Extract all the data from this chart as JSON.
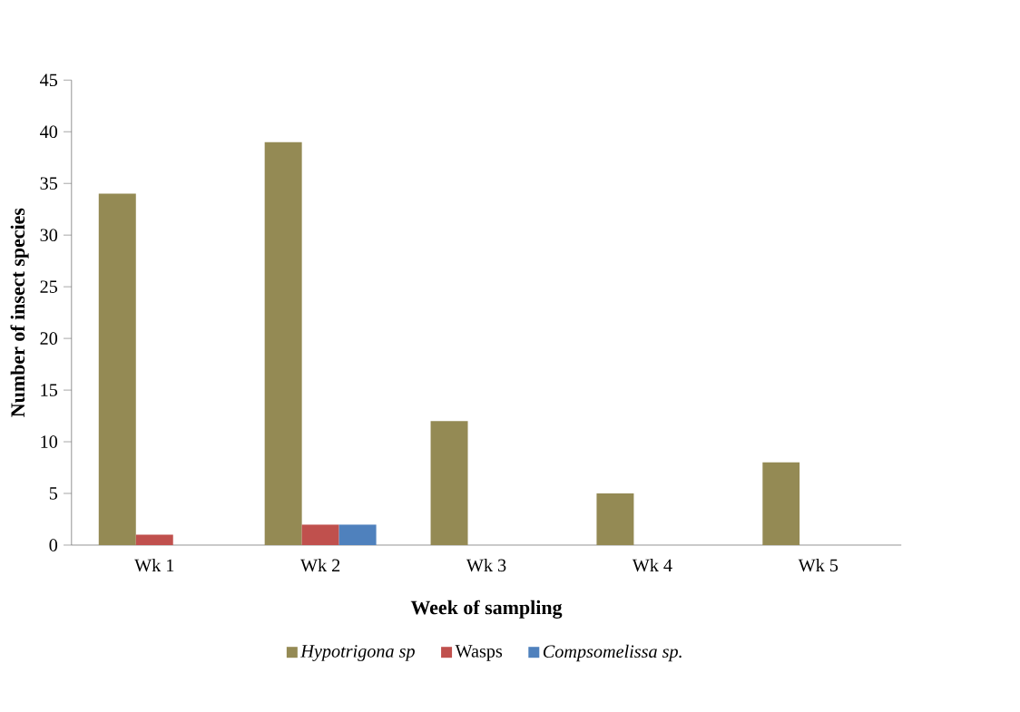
{
  "chart_data": {
    "type": "bar",
    "xlabel": "Week of sampling",
    "ylabel": "Number of insect species",
    "categories": [
      "Wk 1",
      "Wk 2",
      "Wk 3",
      "Wk 4",
      "Wk 5"
    ],
    "series": [
      {
        "name": "*Hypotrigona sp*",
        "color": "#948a54",
        "values": [
          34,
          39,
          12,
          5,
          8
        ]
      },
      {
        "name": "Wasps",
        "color": "#c0504d",
        "values": [
          1,
          2,
          0,
          0,
          0
        ]
      },
      {
        "name": "*Compsomelissa sp.*",
        "color": "#4f81bd",
        "values": [
          0,
          2,
          0,
          0,
          0
        ]
      }
    ],
    "ylim": [
      0,
      45
    ],
    "yticks": [
      0,
      5,
      10,
      15,
      20,
      25,
      30,
      35,
      40,
      45
    ],
    "grid": false,
    "legend": "bottom"
  }
}
